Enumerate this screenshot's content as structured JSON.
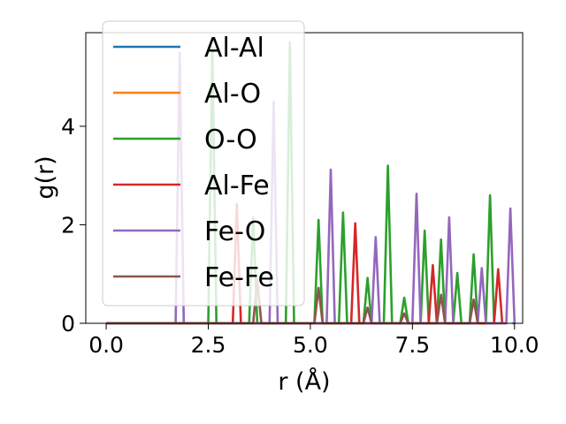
{
  "chart_data": {
    "type": "line",
    "xlabel": "r (Å)",
    "ylabel": "g(r)",
    "xlim": [
      -0.5,
      10.2
    ],
    "ylim": [
      0,
      5.9
    ],
    "xticks": [
      0.0,
      2.5,
      5.0,
      7.5,
      10.0
    ],
    "xtick_labels": [
      "0.0",
      "2.5",
      "5.0",
      "7.5",
      "10.0"
    ],
    "yticks": [
      0,
      2,
      4
    ],
    "ytick_labels": [
      "0",
      "2",
      "4"
    ],
    "legend_position": "top-left",
    "series": [
      {
        "name": "Al-Al",
        "color": "#1f77b4",
        "peaks": []
      },
      {
        "name": "Al-O",
        "color": "#ff7f0e",
        "peaks": []
      },
      {
        "name": "O-O",
        "color": "#2ca02c",
        "peaks": [
          [
            2.6,
            5.6
          ],
          [
            3.6,
            2.15
          ],
          [
            4.5,
            5.7
          ],
          [
            5.2,
            2.1
          ],
          [
            5.8,
            2.25
          ],
          [
            6.4,
            0.92
          ],
          [
            6.9,
            3.2
          ],
          [
            7.3,
            0.52
          ],
          [
            7.8,
            1.88
          ],
          [
            8.2,
            1.7
          ],
          [
            8.6,
            1.02
          ],
          [
            9.0,
            1.4
          ],
          [
            9.4,
            2.6
          ]
        ]
      },
      {
        "name": "Al-Fe",
        "color": "#d62728",
        "peaks": [
          [
            3.2,
            2.42
          ],
          [
            6.1,
            2.03
          ],
          [
            8.0,
            1.18
          ],
          [
            9.6,
            1.1
          ]
        ]
      },
      {
        "name": "Fe-O",
        "color": "#9467bd",
        "peaks": [
          [
            1.8,
            5.5
          ],
          [
            4.1,
            4.5
          ],
          [
            5.5,
            3.12
          ],
          [
            6.6,
            1.75
          ],
          [
            7.6,
            2.63
          ],
          [
            8.4,
            2.15
          ],
          [
            9.2,
            1.12
          ],
          [
            9.9,
            2.33
          ]
        ]
      },
      {
        "name": "Fe-Fe",
        "color": "#8c564b",
        "peaks": [
          [
            3.7,
            0.9
          ],
          [
            5.2,
            0.72
          ],
          [
            6.4,
            0.32
          ],
          [
            7.3,
            0.2
          ],
          [
            8.2,
            0.58
          ],
          [
            9.0,
            0.48
          ]
        ]
      }
    ]
  }
}
